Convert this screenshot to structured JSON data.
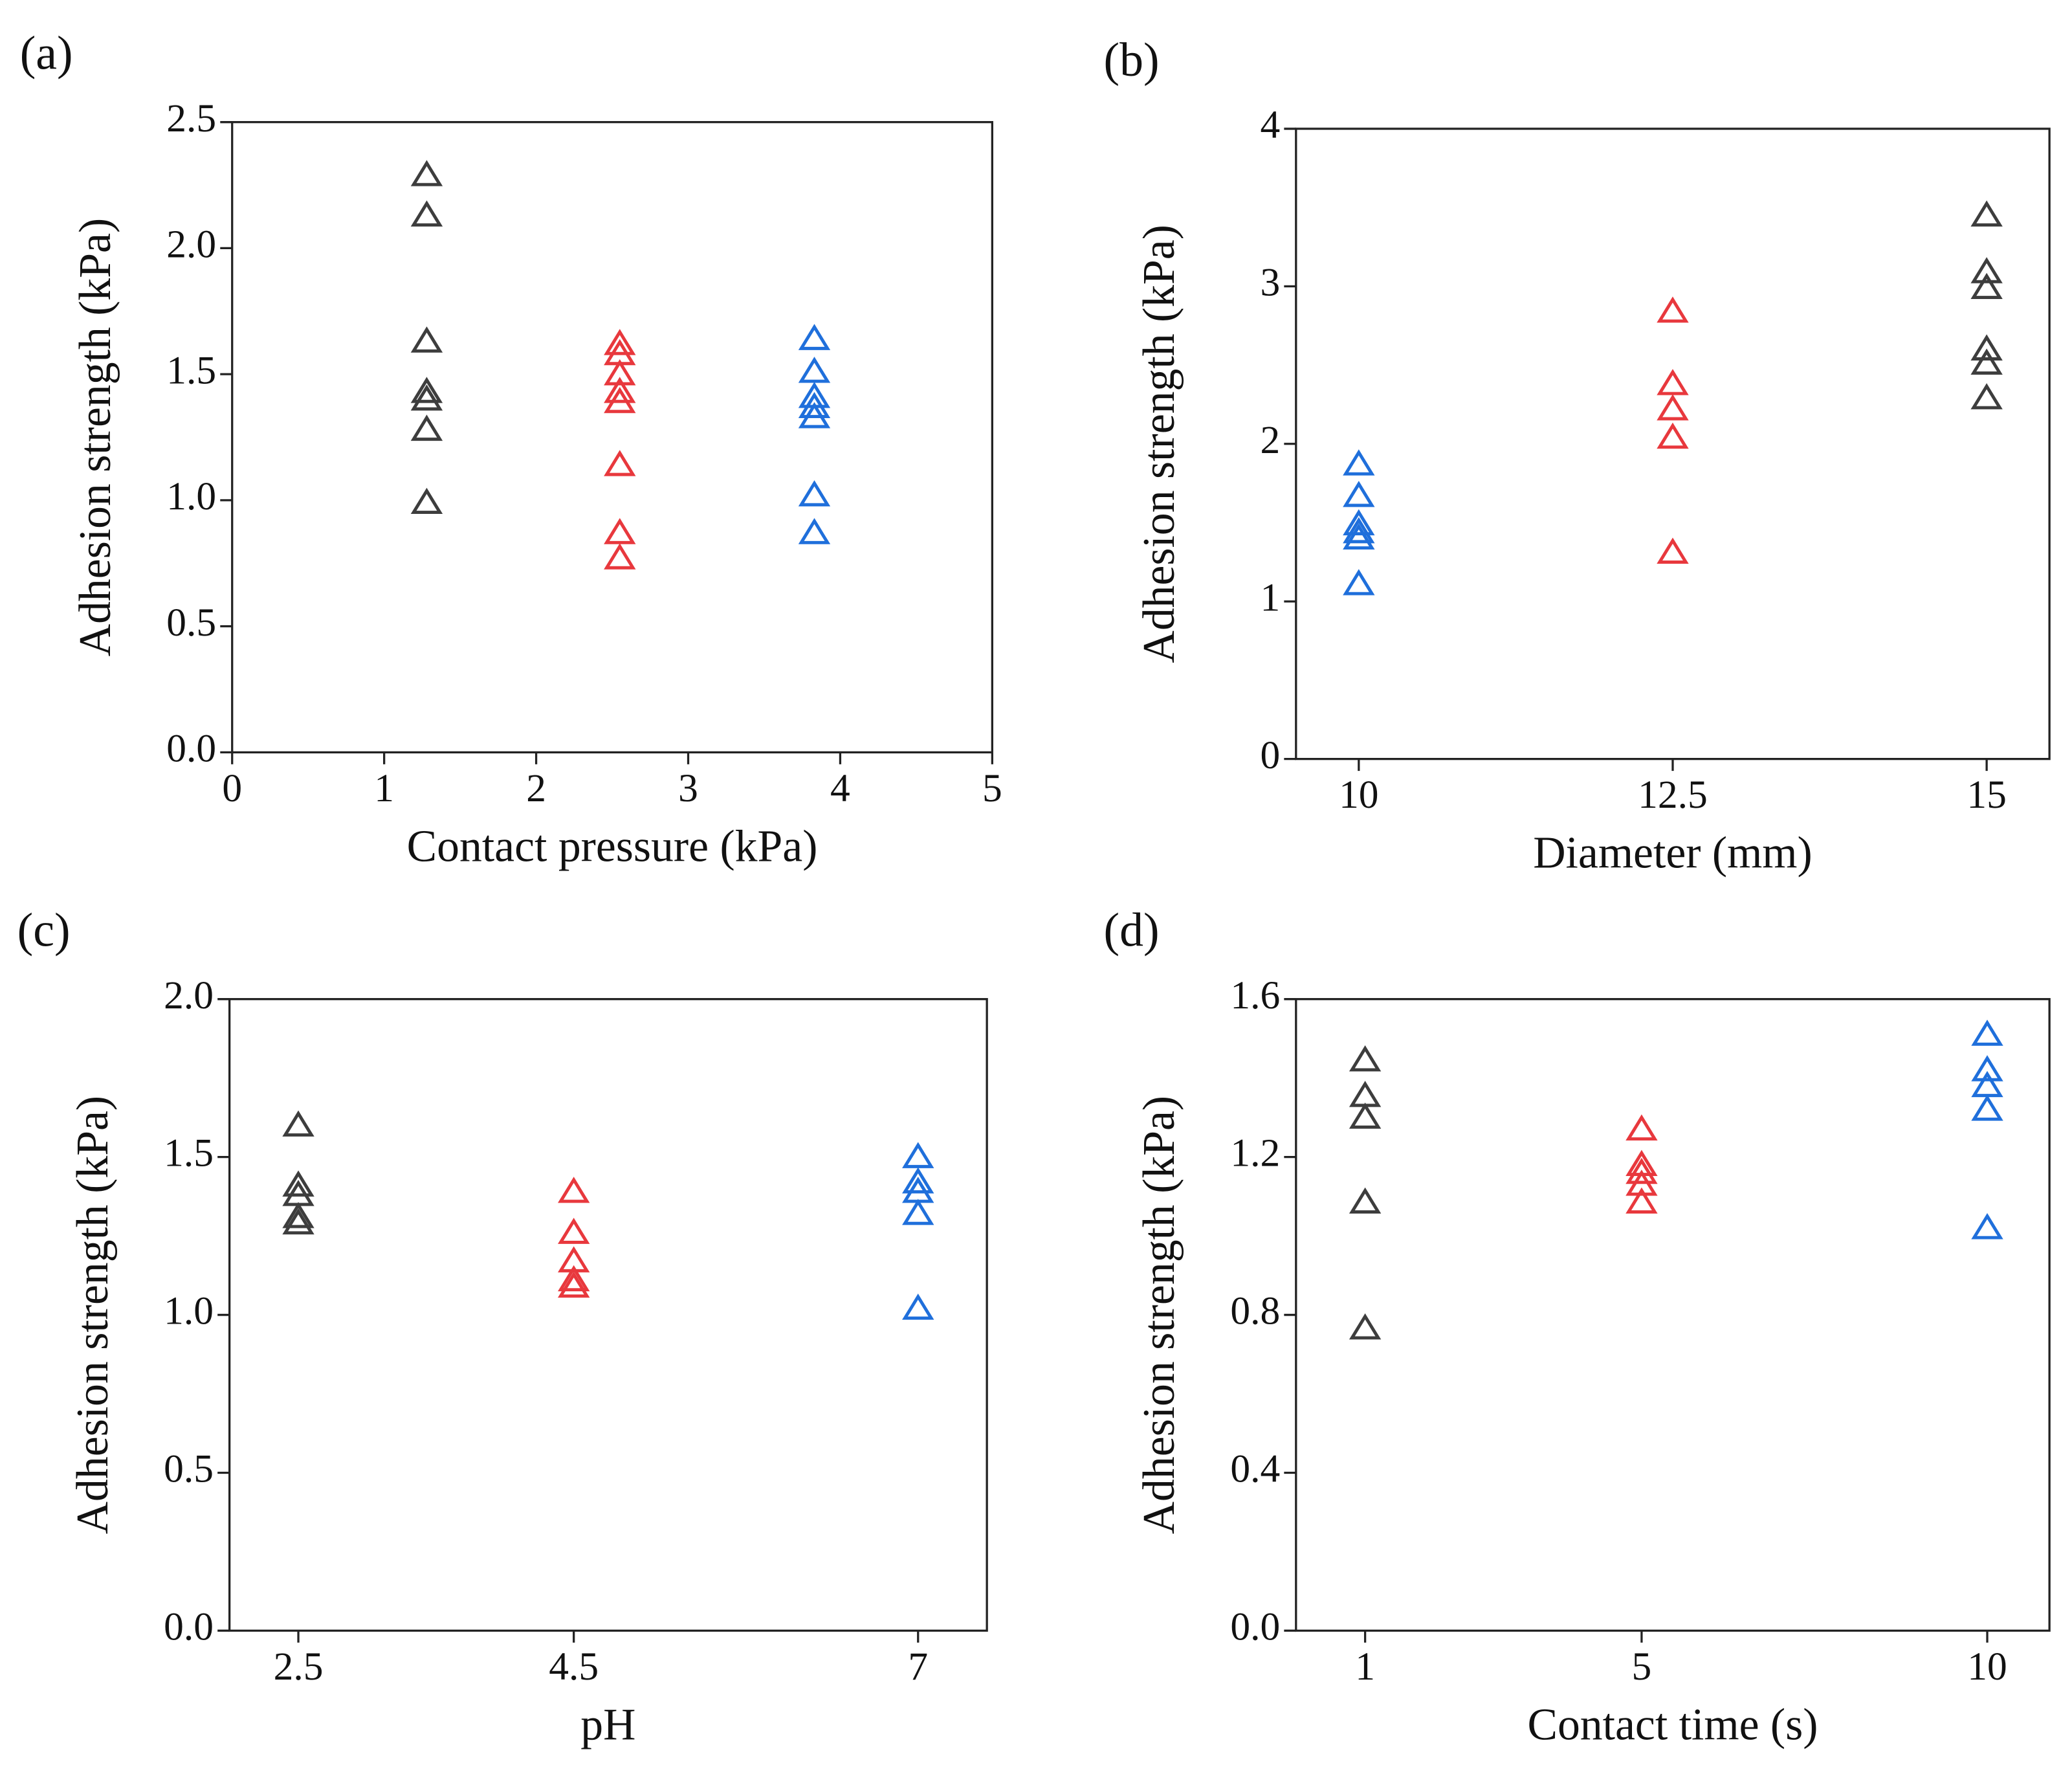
{
  "chart_data": [
    {
      "type": "scatter",
      "label": "(a)",
      "x_label": "Contact pressure (kPa)",
      "y_label": "Adhesion strength (kPa)",
      "xlim": [
        0,
        5
      ],
      "xticks": [
        0,
        1,
        2,
        3,
        4,
        5
      ],
      "ylim": [
        0,
        2.5
      ],
      "yticks": [
        {
          "value": 0,
          "label": "0.0"
        },
        0.5,
        {
          "value": 1,
          "label": "1.0"
        },
        1.5,
        {
          "value": 2,
          "label": "2.0"
        },
        2.5
      ],
      "series": [
        {
          "color": "#3d3d3d",
          "x": [
            1.28,
            1.28,
            1.28,
            1.28,
            1.28,
            1.28,
            1.28
          ],
          "values": [
            2.29,
            2.13,
            1.63,
            1.43,
            1.4,
            1.28,
            0.99
          ]
        },
        {
          "color": "#e8383d",
          "x": [
            2.55,
            2.55,
            2.55,
            2.55,
            2.55,
            2.55,
            2.55,
            2.55
          ],
          "values": [
            1.62,
            1.58,
            1.5,
            1.43,
            1.39,
            1.14,
            0.87,
            0.77
          ]
        },
        {
          "color": "#1f6fdb",
          "x": [
            3.83,
            3.83,
            3.83,
            3.83,
            3.83,
            3.83,
            3.83
          ],
          "values": [
            1.64,
            1.51,
            1.41,
            1.37,
            1.33,
            1.02,
            0.87
          ]
        }
      ]
    },
    {
      "type": "scatter",
      "label": "(b)",
      "x_label": "Diameter (mm)",
      "y_label": "Adhesion strength (kPa)",
      "xlim": [
        9.5,
        15.5
      ],
      "xticks": [
        10,
        12.5,
        15
      ],
      "ylim": [
        0,
        4
      ],
      "yticks": [
        0,
        1,
        2,
        3,
        4
      ],
      "series": [
        {
          "color": "#1f6fdb",
          "x": [
            10,
            10,
            10,
            10,
            10,
            10
          ],
          "values": [
            1.87,
            1.67,
            1.49,
            1.44,
            1.4,
            1.11
          ]
        },
        {
          "color": "#e8383d",
          "x": [
            12.5,
            12.5,
            12.5,
            12.5,
            12.5
          ],
          "values": [
            2.84,
            2.38,
            2.22,
            2.04,
            1.31
          ]
        },
        {
          "color": "#3d3d3d",
          "x": [
            15,
            15,
            15,
            15,
            15,
            15
          ],
          "values": [
            3.45,
            3.09,
            2.99,
            2.6,
            2.51,
            2.29
          ]
        }
      ]
    },
    {
      "type": "scatter",
      "label": "(c)",
      "x_label": "pH",
      "y_label": "Adhesion strength (kPa)",
      "xlim": [
        2,
        7.5
      ],
      "xticks": [
        2.5,
        4.5,
        7
      ],
      "ylim": [
        0,
        2
      ],
      "yticks": [
        {
          "value": 0,
          "label": "0.0"
        },
        0.5,
        {
          "value": 1,
          "label": "1.0"
        },
        1.5,
        {
          "value": 2,
          "label": "2.0"
        }
      ],
      "series": [
        {
          "color": "#3d3d3d",
          "x": [
            2.5,
            2.5,
            2.5,
            2.5,
            2.5
          ],
          "values": [
            1.6,
            1.41,
            1.38,
            1.31,
            1.29
          ]
        },
        {
          "color": "#e8383d",
          "x": [
            4.5,
            4.5,
            4.5,
            4.5,
            4.5
          ],
          "values": [
            1.39,
            1.26,
            1.17,
            1.11,
            1.09
          ]
        },
        {
          "color": "#1f6fdb",
          "x": [
            7,
            7,
            7,
            7,
            7
          ],
          "values": [
            1.5,
            1.42,
            1.39,
            1.32,
            1.02
          ]
        }
      ]
    },
    {
      "type": "scatter",
      "label": "(d)",
      "x_label": "Contact time (s)",
      "y_label": "Adhesion strength (kPa)",
      "xlim": [
        0,
        10.9
      ],
      "xticks": [
        1,
        5,
        10
      ],
      "ylim": [
        0,
        1.6
      ],
      "yticks": [
        {
          "value": 0,
          "label": "0.0"
        },
        0.4,
        0.8,
        1.2,
        1.6
      ],
      "series": [
        {
          "color": "#3d3d3d",
          "x": [
            1,
            1,
            1,
            1,
            1
          ],
          "values": [
            1.445,
            1.355,
            1.3,
            1.085,
            0.766
          ]
        },
        {
          "color": "#e8383d",
          "x": [
            5,
            5,
            5,
            5,
            5
          ],
          "values": [
            1.27,
            1.18,
            1.16,
            1.13,
            1.085
          ]
        },
        {
          "color": "#1f6fdb",
          "x": [
            10,
            10,
            10,
            10,
            10
          ],
          "values": [
            1.51,
            1.42,
            1.38,
            1.32,
            1.02
          ]
        }
      ]
    }
  ]
}
